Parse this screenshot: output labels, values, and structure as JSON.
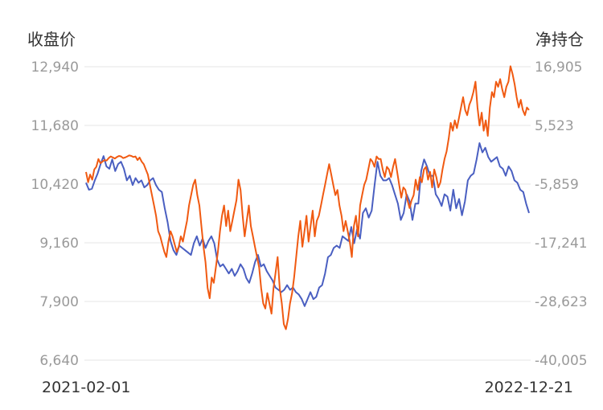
{
  "chart_data": {
    "type": "line",
    "left_axis_title": "收盘价",
    "right_axis_title": "净持仓",
    "left_ticks": [
      "12,940",
      "11,680",
      "10,420",
      "9,160",
      "7,900",
      "6,640"
    ],
    "right_ticks": [
      "16,905",
      "5,523",
      "-5,859",
      "-17,241",
      "-28,623",
      "-40,005"
    ],
    "ylim_left": [
      6640,
      12940
    ],
    "ylim_right": [
      -40005,
      16905
    ],
    "x_start_label": "2021-02-01",
    "x_end_label": "2022-12-21",
    "grid": true,
    "series": [
      {
        "axis": "left",
        "color": "#4a5fc1",
        "values": [
          10450,
          10300,
          10320,
          10500,
          10650,
          10850,
          11020,
          10800,
          10750,
          10950,
          10700,
          10850,
          10900,
          10750,
          10500,
          10600,
          10400,
          10550,
          10450,
          10500,
          10350,
          10400,
          10500,
          10550,
          10400,
          10300,
          10250,
          9900,
          9600,
          9200,
          9000,
          8900,
          9100,
          9050,
          9000,
          8950,
          8900,
          9150,
          9300,
          9100,
          9250,
          9050,
          9200,
          9300,
          9150,
          8800,
          8650,
          8700,
          8600,
          8500,
          8600,
          8450,
          8550,
          8700,
          8600,
          8400,
          8300,
          8500,
          8750,
          8900,
          8650,
          8700,
          8550,
          8450,
          8350,
          8200,
          8150,
          8100,
          8150,
          8250,
          8150,
          8200,
          8100,
          8050,
          7950,
          7800,
          7950,
          8100,
          7950,
          8000,
          8200,
          8250,
          8500,
          8850,
          8900,
          9050,
          9100,
          9050,
          9300,
          9250,
          9200,
          9500,
          9150,
          9450,
          9250,
          9800,
          9900,
          9700,
          9850,
          10400,
          10900,
          10600,
          10500,
          10500,
          10550,
          10400,
          10200,
          10000,
          9650,
          9800,
          10200,
          10050,
          9650,
          10000,
          10000,
          10700,
          10950,
          10800,
          10600,
          10600,
          10200,
          10100,
          9950,
          10200,
          10150,
          9850,
          10300,
          9900,
          10100,
          9750,
          10050,
          10500,
          10600,
          10650,
          10950,
          11300,
          11100,
          11200,
          11000,
          10900,
          10950,
          11000,
          10800,
          10750,
          10600,
          10800,
          10700,
          10500,
          10450,
          10300,
          10250,
          10000,
          9800
        ]
      },
      {
        "axis": "right",
        "color": "#f05a12",
        "values": [
          -3500,
          -5500,
          -4000,
          -5000,
          -3000,
          -2500,
          -1000,
          -1800,
          -1500,
          -1200,
          -1300,
          -800,
          -500,
          -700,
          -900,
          -600,
          -400,
          -500,
          -800,
          -700,
          -500,
          -300,
          -400,
          -600,
          -500,
          -1200,
          -700,
          -1500,
          -2000,
          -3000,
          -4000,
          -6000,
          -8000,
          -10000,
          -12000,
          -15000,
          -16000,
          -17500,
          -19000,
          -20000,
          -17000,
          -15000,
          -16000,
          -17500,
          -19000,
          -18000,
          -16000,
          -17000,
          -15000,
          -13000,
          -10000,
          -8000,
          -6000,
          -5000,
          -8000,
          -10000,
          -14000,
          -18000,
          -21000,
          -26000,
          -28000,
          -24000,
          -25000,
          -22000,
          -19000,
          -15000,
          -12000,
          -10000,
          -14000,
          -11000,
          -15000,
          -13000,
          -11000,
          -9000,
          -5000,
          -7000,
          -12000,
          -16000,
          -13000,
          -10000,
          -14000,
          -16000,
          -18000,
          -20000,
          -22000,
          -26000,
          -29000,
          -30000,
          -27000,
          -29000,
          -31000,
          -26000,
          -23000,
          -20000,
          -26000,
          -29000,
          -33000,
          -34000,
          -32000,
          -29000,
          -27000,
          -24000,
          -20000,
          -16000,
          -13000,
          -18000,
          -15000,
          -12000,
          -17000,
          -14000,
          -11000,
          -16000,
          -13000,
          -12000,
          -10000,
          -8000,
          -6000,
          -4000,
          -2000,
          -4000,
          -6000,
          -8000,
          -7000,
          -10000,
          -12000,
          -15000,
          -13000,
          -15000,
          -17000,
          -20000,
          -14000,
          -12000,
          -16000,
          -10000,
          -8000,
          -6000,
          -5000,
          -3000,
          -1000,
          -1500,
          -2500,
          -500,
          -1000,
          -1000,
          -3000,
          -4500,
          -2500,
          -3000,
          -4500,
          -2500,
          -1000,
          -3500,
          -6000,
          -8500,
          -6500,
          -7000,
          -9000,
          -10500,
          -9000,
          -8000,
          -5000,
          -7000,
          -4500,
          -5500,
          -3000,
          -2500,
          -5000,
          -3500,
          -6500,
          -3000,
          -4500,
          -6500,
          -5500,
          -3000,
          -1000,
          500,
          3000,
          6000,
          4500,
          6500,
          5000,
          7000,
          9000,
          11000,
          8500,
          7500,
          9500,
          10500,
          12000,
          14000,
          9000,
          5500,
          8000,
          4500,
          6500,
          3500,
          9000,
          12000,
          11000,
          14000,
          13000,
          14500,
          12500,
          11000,
          13000,
          14000,
          17000,
          15500,
          13500,
          11000,
          9000,
          10500,
          8500,
          7500,
          9000,
          8500
        ]
      }
    ]
  }
}
